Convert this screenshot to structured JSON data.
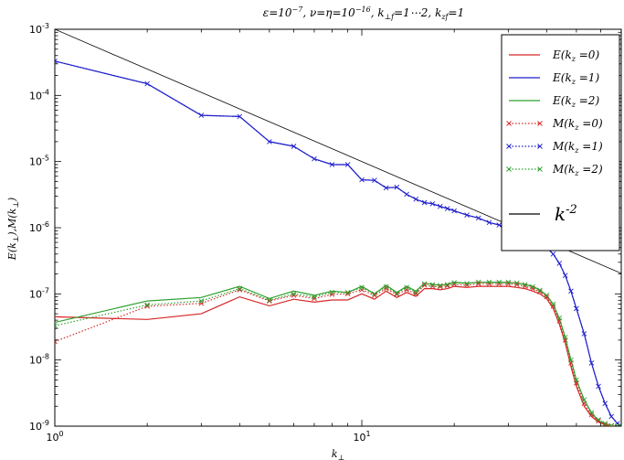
{
  "chart_data": {
    "type": "line",
    "title": "ε=10⁻⁷,    ν=η=10⁻¹⁶,    k⊥f=1⋯2,    kzf=1",
    "xlabel": "k⊥",
    "ylabel": "E(k⊥),M(k⊥)",
    "xscale": "log",
    "yscale": "log",
    "xlim": [
      1,
      70
    ],
    "ylim": [
      1e-09,
      0.001
    ],
    "x_tick_labels": [
      {
        "value": 1,
        "base": "10",
        "exp": "0"
      },
      {
        "value": 10,
        "base": "10",
        "exp": "1"
      }
    ],
    "y_tick_labels": [
      {
        "value": 1e-09,
        "base": "10",
        "exp": "-9"
      },
      {
        "value": 1e-08,
        "base": "10",
        "exp": "-8"
      },
      {
        "value": 1e-07,
        "base": "10",
        "exp": "-7"
      },
      {
        "value": 1e-06,
        "base": "10",
        "exp": "-6"
      },
      {
        "value": 1e-05,
        "base": "10",
        "exp": "-5"
      },
      {
        "value": 0.0001,
        "base": "10",
        "exp": "-4"
      },
      {
        "value": 0.001,
        "base": "10",
        "exp": "-3"
      }
    ],
    "legend_position": "top-right",
    "grid": false,
    "series": [
      {
        "name": "E(kz=0)",
        "color": "#d62728",
        "style": "solid",
        "marker": "none",
        "x": [
          1,
          2,
          3,
          4,
          5,
          6,
          7,
          8,
          9,
          10,
          11,
          12,
          13,
          14,
          15,
          16,
          17,
          18,
          19,
          20,
          22,
          24,
          26,
          28,
          30,
          32,
          34,
          36,
          38,
          40,
          42,
          44,
          46,
          48,
          50,
          53,
          56,
          59,
          62,
          65,
          68,
          70
        ],
        "y": [
          4.5e-08,
          4.1e-08,
          5e-08,
          9e-08,
          6.6e-08,
          8.3e-08,
          7.5e-08,
          8.1e-08,
          8.1e-08,
          1e-07,
          8.3e-08,
          1.1e-07,
          8.8e-08,
          1.05e-07,
          9.2e-08,
          1.2e-07,
          1.2e-07,
          1.15e-07,
          1.2e-07,
          1.3e-07,
          1.25e-07,
          1.3e-07,
          1.3e-07,
          1.3e-07,
          1.3e-07,
          1.25e-07,
          1.2e-07,
          1.1e-07,
          1e-07,
          8.5e-08,
          6e-08,
          3.5e-08,
          1.8e-08,
          8e-09,
          4e-09,
          2e-09,
          1.4e-09,
          1.15e-09,
          1.05e-09,
          1e-09,
          1e-09,
          1e-09
        ]
      },
      {
        "name": "E(kz=1)",
        "color": "#1f1fcc",
        "style": "solid",
        "marker": "none",
        "x": [
          1,
          2,
          3,
          4,
          5,
          6,
          7,
          8,
          9,
          10,
          11,
          12,
          13,
          14,
          15,
          16,
          17,
          18,
          19,
          20,
          22,
          24,
          26,
          28,
          30,
          32,
          34,
          36,
          38,
          40,
          42,
          44,
          46,
          48,
          50,
          53,
          56,
          59,
          62,
          65,
          68,
          70
        ],
        "y": [
          0.00033,
          0.00015,
          5e-05,
          4.8e-05,
          2e-05,
          1.7e-05,
          1.1e-05,
          9e-06,
          9e-06,
          5.3e-06,
          5.2e-06,
          4e-06,
          4.1e-06,
          3.2e-06,
          2.7e-06,
          2.4e-06,
          2.3e-06,
          2.1e-06,
          1.95e-06,
          1.8e-06,
          1.55e-06,
          1.4e-06,
          1.2e-06,
          1.1e-06,
          9.5e-07,
          8.5e-07,
          7.5e-07,
          6.8e-07,
          6e-07,
          5e-07,
          4e-07,
          2.9e-07,
          1.9e-07,
          1.1e-07,
          6e-08,
          2.5e-08,
          9e-09,
          4e-09,
          2.2e-09,
          1.4e-09,
          1.1e-09,
          1e-09
        ]
      },
      {
        "name": "E(kz=2)",
        "color": "#2ca02c",
        "style": "solid",
        "marker": "none",
        "x": [
          1,
          2,
          3,
          4,
          5,
          6,
          7,
          8,
          9,
          10,
          11,
          12,
          13,
          14,
          15,
          16,
          17,
          18,
          19,
          20,
          22,
          24,
          26,
          28,
          30,
          32,
          34,
          36,
          38,
          40,
          42,
          44,
          46,
          48,
          50,
          53,
          56,
          59,
          62,
          65,
          68,
          70
        ],
        "y": [
          3.7e-08,
          7.8e-08,
          8.8e-08,
          1.3e-07,
          8.5e-08,
          1.1e-07,
          9.5e-08,
          1.1e-07,
          1.05e-07,
          1.3e-07,
          1e-07,
          1.35e-07,
          1.05e-07,
          1.3e-07,
          1.1e-07,
          1.45e-07,
          1.4e-07,
          1.35e-07,
          1.4e-07,
          1.5e-07,
          1.45e-07,
          1.5e-07,
          1.5e-07,
          1.5e-07,
          1.5e-07,
          1.45e-07,
          1.4e-07,
          1.3e-07,
          1.15e-07,
          9.5e-08,
          7e-08,
          4.2e-08,
          2.2e-08,
          1e-08,
          5e-09,
          2.5e-09,
          1.6e-09,
          1.2e-09,
          1.1e-09,
          1e-09,
          1e-09,
          1e-09
        ]
      },
      {
        "name": "M(kz=0)",
        "color": "#d62728",
        "style": "dotted",
        "marker": "x",
        "x": [
          1,
          2,
          3,
          4,
          5,
          6,
          7,
          8,
          9,
          10,
          11,
          12,
          13,
          14,
          15,
          16,
          17,
          18,
          19,
          20,
          22,
          24,
          26,
          28,
          30,
          32,
          34,
          36,
          38,
          40,
          42,
          44,
          46,
          48,
          50,
          53,
          56,
          59,
          62,
          65,
          68,
          70
        ],
        "y": [
          1.9e-08,
          6.5e-08,
          7.2e-08,
          1.15e-07,
          7.8e-08,
          9.5e-08,
          8.5e-08,
          9.8e-08,
          1e-07,
          1.15e-07,
          9.5e-08,
          1.2e-07,
          9.8e-08,
          1.15e-07,
          1e-07,
          1.35e-07,
          1.3e-07,
          1.28e-07,
          1.32e-07,
          1.4e-07,
          1.35e-07,
          1.42e-07,
          1.42e-07,
          1.42e-07,
          1.42e-07,
          1.38e-07,
          1.3e-07,
          1.2e-07,
          1.08e-07,
          9e-08,
          6.5e-08,
          3.9e-08,
          2e-08,
          9e-09,
          4.5e-09,
          2.2e-09,
          1.5e-09,
          1.2e-09,
          1.05e-09,
          1e-09,
          1e-09,
          1e-09
        ]
      },
      {
        "name": "M(kz=1)",
        "color": "#1f1fcc",
        "style": "dotted",
        "marker": "x",
        "x": [
          1,
          2,
          3,
          4,
          5,
          6,
          7,
          8,
          9,
          10,
          11,
          12,
          13,
          14,
          15,
          16,
          17,
          18,
          19,
          20,
          22,
          24,
          26,
          28,
          30,
          32,
          34,
          36,
          38,
          40,
          42,
          44,
          46,
          48,
          50,
          53,
          56,
          59,
          62,
          65,
          68,
          70
        ],
        "y": [
          0.00033,
          0.00015,
          5e-05,
          4.8e-05,
          2e-05,
          1.7e-05,
          1.1e-05,
          9e-06,
          9e-06,
          5.3e-06,
          5.2e-06,
          4e-06,
          4.1e-06,
          3.2e-06,
          2.7e-06,
          2.4e-06,
          2.3e-06,
          2.1e-06,
          1.95e-06,
          1.8e-06,
          1.55e-06,
          1.4e-06,
          1.2e-06,
          1.1e-06,
          9.5e-07,
          8.5e-07,
          7.5e-07,
          6.8e-07,
          6e-07,
          5e-07,
          4e-07,
          2.9e-07,
          1.9e-07,
          1.1e-07,
          6e-08,
          2.5e-08,
          9e-09,
          4e-09,
          2.2e-09,
          1.4e-09,
          1.1e-09,
          1e-09
        ]
      },
      {
        "name": "M(kz=2)",
        "color": "#2ca02c",
        "style": "dotted",
        "marker": "x",
        "x": [
          1,
          2,
          3,
          4,
          5,
          6,
          7,
          8,
          9,
          10,
          11,
          12,
          13,
          14,
          15,
          16,
          17,
          18,
          19,
          20,
          22,
          24,
          26,
          28,
          30,
          32,
          34,
          36,
          38,
          40,
          42,
          44,
          46,
          48,
          50,
          53,
          56,
          59,
          62,
          65,
          68,
          70
        ],
        "y": [
          3.3e-08,
          6.8e-08,
          7.8e-08,
          1.2e-07,
          8e-08,
          1e-07,
          9e-08,
          1.05e-07,
          1.05e-07,
          1.25e-07,
          1e-07,
          1.28e-07,
          1.02e-07,
          1.25e-07,
          1.05e-07,
          1.42e-07,
          1.38e-07,
          1.34e-07,
          1.38e-07,
          1.48e-07,
          1.43e-07,
          1.5e-07,
          1.5e-07,
          1.5e-07,
          1.5e-07,
          1.46e-07,
          1.38e-07,
          1.28e-07,
          1.13e-07,
          9.5e-08,
          7e-08,
          4.3e-08,
          2.2e-08,
          1e-08,
          5e-09,
          2.5e-09,
          1.6e-09,
          1.25e-09,
          1.1e-09,
          1.02e-09,
          1e-09,
          1e-09
        ]
      },
      {
        "name": "k-2",
        "color": "#000000",
        "style": "solid",
        "marker": "none",
        "x": [
          1,
          70
        ],
        "y": [
          0.001,
          2.04e-07
        ]
      }
    ],
    "legend": [
      {
        "label": "E(kz=0)",
        "color": "#d62728",
        "style": "solid"
      },
      {
        "label": "E(kz=1)",
        "color": "#1f1fcc",
        "style": "solid"
      },
      {
        "label": "E(kz=2)",
        "color": "#2ca02c",
        "style": "solid"
      },
      {
        "label": "M(kz=0)",
        "color": "#d62728",
        "style": "dotted"
      },
      {
        "label": "M(kz=1)",
        "color": "#1f1fcc",
        "style": "dotted"
      },
      {
        "label": "M(kz=2)",
        "color": "#2ca02c",
        "style": "dotted"
      },
      {
        "label": "k-2",
        "color": "#000000",
        "style": "solid"
      }
    ]
  }
}
